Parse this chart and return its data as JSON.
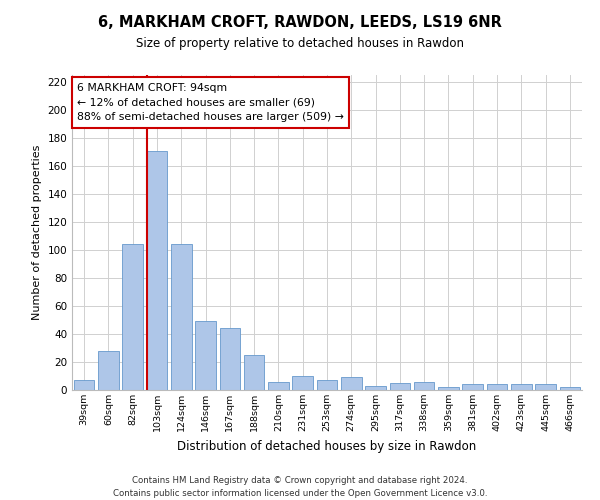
{
  "title1": "6, MARKHAM CROFT, RAWDON, LEEDS, LS19 6NR",
  "title2": "Size of property relative to detached houses in Rawdon",
  "xlabel": "Distribution of detached houses by size in Rawdon",
  "ylabel": "Number of detached properties",
  "categories": [
    "39sqm",
    "60sqm",
    "82sqm",
    "103sqm",
    "124sqm",
    "146sqm",
    "167sqm",
    "188sqm",
    "210sqm",
    "231sqm",
    "253sqm",
    "274sqm",
    "295sqm",
    "317sqm",
    "338sqm",
    "359sqm",
    "381sqm",
    "402sqm",
    "423sqm",
    "445sqm",
    "466sqm"
  ],
  "values": [
    7,
    28,
    104,
    171,
    104,
    49,
    44,
    25,
    6,
    10,
    7,
    9,
    3,
    5,
    6,
    2,
    4,
    4,
    4,
    4,
    2
  ],
  "bar_color": "#aec6e8",
  "bar_edge_color": "#6699cc",
  "vline_color": "#cc0000",
  "annotation_text": "6 MARKHAM CROFT: 94sqm\n← 12% of detached houses are smaller (69)\n88% of semi-detached houses are larger (509) →",
  "annotation_box_edge": "#cc0000",
  "ylim": [
    0,
    225
  ],
  "yticks": [
    0,
    20,
    40,
    60,
    80,
    100,
    120,
    140,
    160,
    180,
    200,
    220
  ],
  "footer1": "Contains HM Land Registry data © Crown copyright and database right 2024.",
  "footer2": "Contains public sector information licensed under the Open Government Licence v3.0.",
  "bg_color": "#ffffff",
  "grid_color": "#d0d0d0",
  "vline_pos": 2.57
}
